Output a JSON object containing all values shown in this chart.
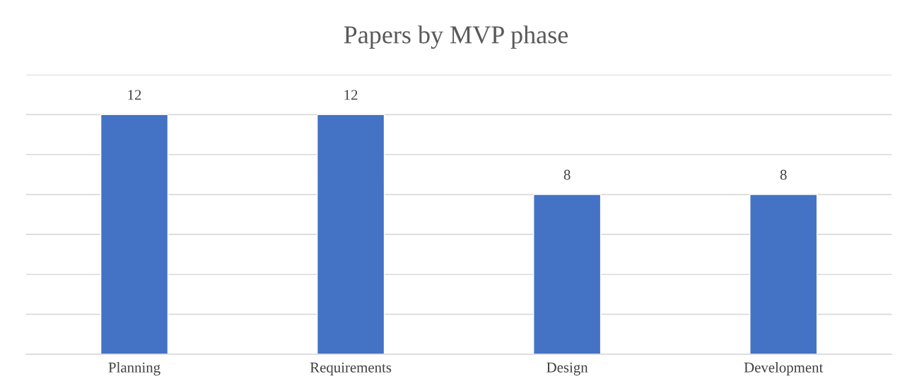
{
  "chart_data": {
    "type": "bar",
    "title": "Papers by MVP phase",
    "categories": [
      "Planning",
      "Requirements",
      "Design",
      "Development"
    ],
    "values": [
      12,
      12,
      8,
      8
    ],
    "color": "#4472c4",
    "ylim": [
      0,
      14
    ],
    "yticks": [
      {
        "value": 0,
        "label": null
      },
      {
        "value": 2,
        "label": null
      },
      {
        "value": 4,
        "label": null
      },
      {
        "value": 6,
        "label": null
      },
      {
        "value": 8,
        "label": null
      },
      {
        "value": 10,
        "label": null
      },
      {
        "value": 12,
        "label": null
      },
      {
        "value": 14,
        "label": null
      }
    ],
    "tick_labels": "x",
    "grid": "y",
    "data_labels": true
  }
}
